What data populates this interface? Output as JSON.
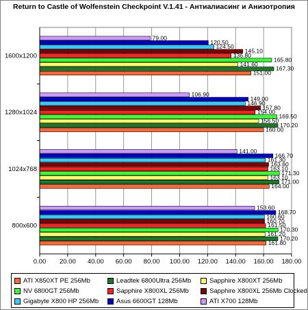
{
  "chart_data": {
    "type": "bar",
    "orientation": "horizontal",
    "title": "Return to Castle of Wolfenstein Checkpoint V.1.41 - Антиалиасинг и Анизотропия",
    "xlabel": "",
    "ylabel": "",
    "xlim": [
      0,
      180
    ],
    "xticks": [
      "0.00",
      "20.00",
      "40.00",
      "60.00",
      "80.00",
      "100.00",
      "120.00",
      "140.00",
      "160.00",
      "180.00"
    ],
    "grid": "vertical",
    "legend_position": "bottom",
    "categories": [
      "1600x1200",
      "1280x1024",
      "1024x768",
      "800x600"
    ],
    "series": [
      {
        "name": "ATI X850XT PE 256Mb",
        "color": "#ff6633",
        "values": [
          151.0,
          160.0,
          164.0,
          161.8
        ]
      },
      {
        "name": "Leadtek 6800Ultra 256Mb",
        "color": "#1a7a2a",
        "values": [
          167.3,
          170.2,
          171.0,
          170.2
        ]
      },
      {
        "name": "Sapphire X800XT 256Mb",
        "color": "#ffff66",
        "values": [
          141.6,
          156.5,
          163.1,
          161.2
        ]
      },
      {
        "name": "NV 6800GT 256Mb",
        "color": "#33ff33",
        "values": [
          165.8,
          169.5,
          171.3,
          170.3
        ]
      },
      {
        "name": "Sapphire X800XL 256Mb",
        "color": "#ff2020",
        "values": [
          136.8,
          154.0,
          163.1,
          161.5
        ]
      },
      {
        "name": "Sapphire X800XL 256Mb Clocked",
        "color": "#800000",
        "values": [
          145.1,
          157.8,
          163.6,
          160.7
        ]
      },
      {
        "name": "Gigabyte X800 HP 256Mb",
        "color": "#33ccff",
        "values": [
          124.5,
          146.9,
          161.3,
          160.6
        ]
      },
      {
        "name": "Asus 6600GT 128Mb",
        "color": "#0000cc",
        "values": [
          120.5,
          149.0,
          166.7,
          168.7
        ]
      },
      {
        "name": "ATI X700 128Mb",
        "color": "#cc99ff",
        "values": [
          79.0,
          106.9,
          141.0,
          153.6
        ]
      }
    ]
  }
}
